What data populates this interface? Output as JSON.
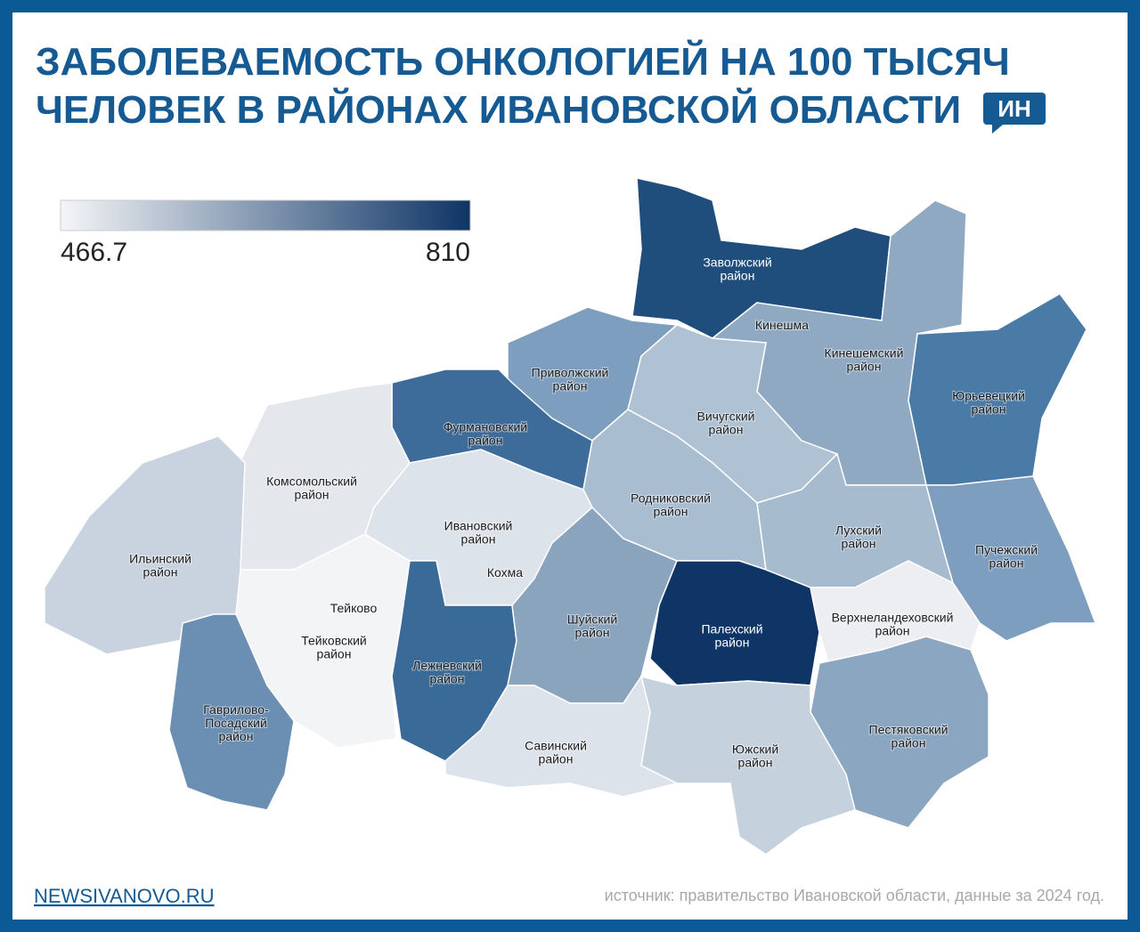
{
  "header": {
    "title_lines": [
      "ЗАБОЛЕВАЕМОСТЬ ОНКОЛОГИЕЙ НА 100 ТЫСЯЧ",
      "ЧЕЛОВЕК В РАЙОНАХ ИВАНОВСКОЙ ОБЛАСТИ"
    ],
    "logo": "ИН"
  },
  "legend": {
    "min": 466.7,
    "max": 810,
    "color_min": "#f4f5f7",
    "color_max": "#0e3566"
  },
  "regions": [
    {
      "lines": [
        "Заволжский",
        "район"
      ],
      "color": "#1f4e7d"
    },
    {
      "lines": [
        "Кинешемский",
        "район"
      ],
      "color": "#8ea9c1"
    },
    {
      "lines": [
        "Юрьевецкий",
        "район"
      ],
      "color": "#4a7aa6"
    },
    {
      "lines": [
        "Приволжский",
        "район"
      ],
      "color": "#7d9ebe"
    },
    {
      "lines": [
        "Вичугский",
        "район"
      ],
      "color": "#afc2d4"
    },
    {
      "lines": [
        "Фурмановский",
        "район"
      ],
      "color": "#3d6b9a"
    },
    {
      "lines": [
        "Комсомольский",
        "район"
      ],
      "color": "#e4e8ed"
    },
    {
      "lines": [
        "Ильинский",
        "район"
      ],
      "color": "#c8d3df"
    },
    {
      "lines": [
        "Тейковский",
        "район"
      ],
      "color": "#f3f4f6"
    },
    {
      "lines": [
        "Ивановский",
        "район"
      ],
      "color": "#dde3ea"
    },
    {
      "lines": [
        "Лежневский",
        "район"
      ],
      "color": "#3a6a98"
    },
    {
      "lines": [
        "Шуйский",
        "район"
      ],
      "color": "#8aa4be"
    },
    {
      "lines": [
        "Родниковский",
        "район"
      ],
      "color": "#a9bdd1"
    },
    {
      "lines": [
        "Палехский",
        "район"
      ],
      "color": "#0e3566"
    },
    {
      "lines": [
        "Лухский",
        "район"
      ],
      "color": "#a7bbcf"
    },
    {
      "lines": [
        "Пучежский",
        "район"
      ],
      "color": "#7d9ebe"
    },
    {
      "lines": [
        "Верхнеландеховский",
        "район"
      ],
      "color": "#eceef1"
    },
    {
      "lines": [
        "Пестяковский",
        "район"
      ],
      "color": "#8ba6c0"
    },
    {
      "lines": [
        "Южский",
        "район"
      ],
      "color": "#c5d1dd"
    },
    {
      "lines": [
        "Савинский",
        "район"
      ],
      "color": "#dde3ea"
    },
    {
      "lines": [
        "Гаврилово-",
        "Посадский",
        "район"
      ],
      "color": "#6b8fb3"
    }
  ],
  "cities": [
    "Кинешма",
    "Кохма",
    "Тейково"
  ],
  "footer": {
    "site": "NEWSIVANOVO.RU",
    "source": "источник: правительство Ивановской области, данные за 2024 год."
  }
}
